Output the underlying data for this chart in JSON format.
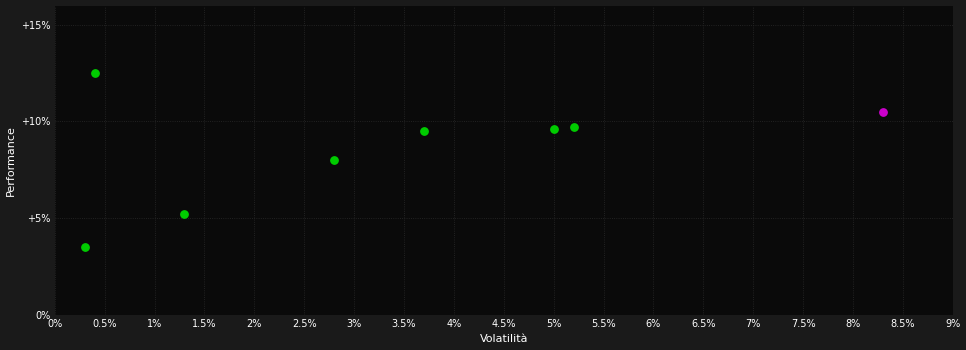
{
  "background_color": "#1a1a1a",
  "plot_bg_color": "#0a0a0a",
  "grid_color": "#2a2a2a",
  "xlabel": "Volatilità",
  "ylabel": "Performance",
  "xlim": [
    0,
    0.09
  ],
  "ylim": [
    0,
    0.16
  ],
  "xtick_values": [
    0.0,
    0.005,
    0.01,
    0.015,
    0.02,
    0.025,
    0.03,
    0.035,
    0.04,
    0.045,
    0.05,
    0.055,
    0.06,
    0.065,
    0.07,
    0.075,
    0.08,
    0.085,
    0.09
  ],
  "xtick_labels": [
    "0%",
    "0.5%",
    "1%",
    "1.5%",
    "2%",
    "2.5%",
    "3%",
    "3.5%",
    "4%",
    "4.5%",
    "5%",
    "5.5%",
    "6%",
    "6.5%",
    "7%",
    "7.5%",
    "8%",
    "8.5%",
    "9%"
  ],
  "ytick_values": [
    0.0,
    0.05,
    0.1,
    0.15
  ],
  "ytick_labels": [
    "0%",
    "+5%",
    "+10%",
    "+15%"
  ],
  "green_points": [
    [
      0.003,
      0.035
    ],
    [
      0.004,
      0.125
    ],
    [
      0.013,
      0.052
    ],
    [
      0.028,
      0.08
    ],
    [
      0.037,
      0.095
    ],
    [
      0.05,
      0.096
    ],
    [
      0.052,
      0.097
    ]
  ],
  "magenta_points": [
    [
      0.083,
      0.105
    ]
  ],
  "green_color": "#00cc00",
  "magenta_color": "#cc00cc",
  "dot_size": 28,
  "tick_fontsize": 7,
  "label_fontsize": 8
}
